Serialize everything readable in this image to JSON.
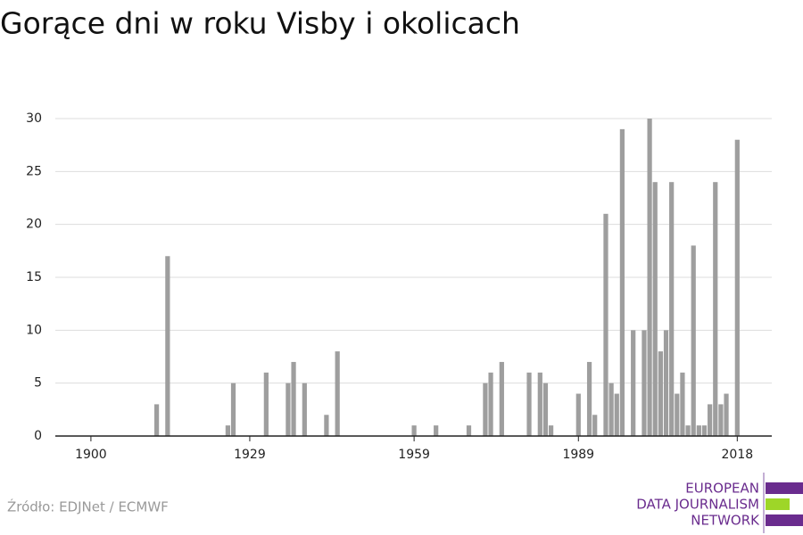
{
  "chart_data": {
    "type": "bar",
    "title": "Gorące dni w roku Visby i okolicach",
    "x": [
      1912,
      1914,
      1925,
      1926,
      1932,
      1936,
      1937,
      1939,
      1943,
      1945,
      1959,
      1963,
      1969,
      1972,
      1973,
      1975,
      1980,
      1982,
      1983,
      1984,
      1989,
      1991,
      1992,
      1994,
      1995,
      1996,
      1997,
      1999,
      2001,
      2002,
      2003,
      2004,
      2005,
      2006,
      2007,
      2008,
      2009,
      2010,
      2011,
      2012,
      2013,
      2014,
      2015,
      2016,
      2018
    ],
    "values": [
      3,
      17,
      1,
      5,
      6,
      5,
      7,
      5,
      2,
      8,
      1,
      1,
      1,
      5,
      6,
      7,
      6,
      6,
      5,
      1,
      4,
      7,
      2,
      21,
      5,
      4,
      29,
      10,
      10,
      30,
      24,
      8,
      10,
      24,
      4,
      6,
      1,
      18,
      1,
      1,
      3,
      24,
      3,
      4,
      28
    ],
    "color": "#9e9e9e",
    "xlim": [
      1893.5,
      2024.3
    ],
    "xticks": [
      1900,
      1929,
      1959,
      1989,
      2018
    ],
    "ylim": [
      0,
      30
    ],
    "yticks": [
      0,
      5,
      10,
      15,
      20,
      25,
      30
    ],
    "grid": true,
    "source": "Źródło: EDJNet / ECMWF"
  },
  "logo": {
    "lines": [
      "EUROPEAN",
      "DATA JOURNALISM",
      "NETWORK"
    ]
  }
}
